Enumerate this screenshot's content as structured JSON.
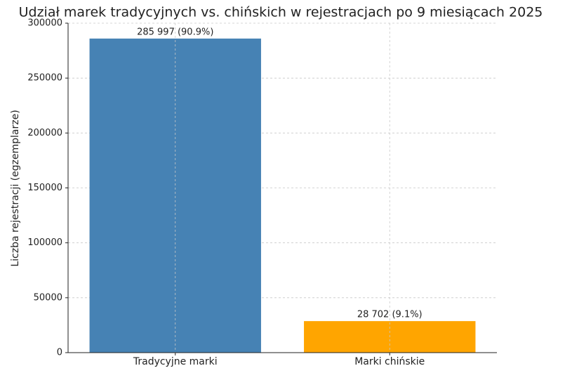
{
  "chart_data": {
    "type": "bar",
    "title": "Udział marek tradycyjnych vs. chińskich w rejestracjach po 9 miesiącach 2025",
    "y_label": "Liczba rejestracji (egzemplarze)",
    "categories": [
      "Tradycyjne marki",
      "Marki chińskie"
    ],
    "values": [
      285997,
      28702
    ],
    "value_labels": [
      "285 997 (90.9%)",
      "28 702 (9.1%)"
    ],
    "colors": [
      "#4682b4",
      "#ffa500"
    ],
    "ylim": [
      0,
      300000
    ],
    "yticks": [
      0,
      50000,
      100000,
      150000,
      200000,
      250000,
      300000
    ],
    "grid": true
  }
}
